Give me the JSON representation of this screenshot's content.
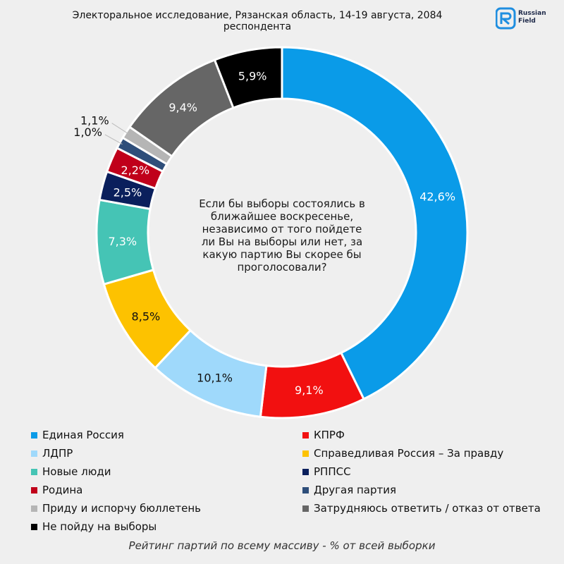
{
  "header": {
    "title": "Электоральное исследование, Рязанская область, 14-19 августа, 2084 респондента",
    "logo_line1": "Russian",
    "logo_line2": "Field"
  },
  "center_question": "Если бы выборы состоялись в ближайшее воскресенье, независимо от того пойдете ли Вы на выборы или нет, за какую партию Вы скорее бы проголосовали?",
  "footer": "Рейтинг партий по всему массиву - % от всей выборки",
  "chart_data": {
    "type": "pie",
    "donut": true,
    "slices": [
      {
        "name": "Единая Россия",
        "value": 42.6,
        "label": "42,6%",
        "color": "#0a9be8",
        "text_color": "#ffffff"
      },
      {
        "name": "КПРФ",
        "value": 9.1,
        "label": "9,1%",
        "color": "#f21010",
        "text_color": "#ffffff"
      },
      {
        "name": "ЛДПР",
        "value": 10.1,
        "label": "10,1%",
        "color": "#9fd9fb",
        "text_color": "#111111"
      },
      {
        "name": "Справедливая Россия – За правду",
        "value": 8.5,
        "label": "8,5%",
        "color": "#fdc200",
        "text_color": "#111111"
      },
      {
        "name": "Новые люди",
        "value": 7.3,
        "label": "7,3%",
        "color": "#45c4b5",
        "text_color": "#ffffff"
      },
      {
        "name": "РППСС",
        "value": 2.5,
        "label": "2,5%",
        "color": "#0a1f5c",
        "text_color": "#ffffff"
      },
      {
        "name": "Родина",
        "value": 2.2,
        "label": "2,2%",
        "color": "#c0001a",
        "text_color": "#ffffff"
      },
      {
        "name": "Другая партия",
        "value": 1.0,
        "label": "1,0%",
        "color": "#2e4e7a",
        "text_color": "#111111"
      },
      {
        "name": "Приду и испорчу бюллетень",
        "value": 1.1,
        "label": "1,1%",
        "color": "#b5b5b5",
        "text_color": "#111111"
      },
      {
        "name": "Затрудняюсь ответить / отказ от ответа",
        "value": 9.4,
        "label": "9,4%",
        "color": "#666666",
        "text_color": "#ffffff"
      },
      {
        "name": "Не пойду на выборы",
        "value": 5.9,
        "label": "5,9%",
        "color": "#000000",
        "text_color": "#ffffff"
      }
    ]
  },
  "legend": [
    {
      "name": "Единая Россия",
      "color": "#0a9be8"
    },
    {
      "name": "КПРФ",
      "color": "#f21010"
    },
    {
      "name": "ЛДПР",
      "color": "#9fd9fb"
    },
    {
      "name": "Справедливая Россия – За правду",
      "color": "#fdc200"
    },
    {
      "name": "Новые люди",
      "color": "#45c4b5"
    },
    {
      "name": "РППСС",
      "color": "#0a1f5c"
    },
    {
      "name": "Родина",
      "color": "#c0001a"
    },
    {
      "name": "Другая партия",
      "color": "#2e4e7a"
    },
    {
      "name": "Приду и испорчу бюллетень",
      "color": "#b5b5b5"
    },
    {
      "name": "Затрудняюсь ответить / отказ от ответа",
      "color": "#666666"
    },
    {
      "name": "Не пойду на выборы",
      "color": "#000000"
    }
  ]
}
